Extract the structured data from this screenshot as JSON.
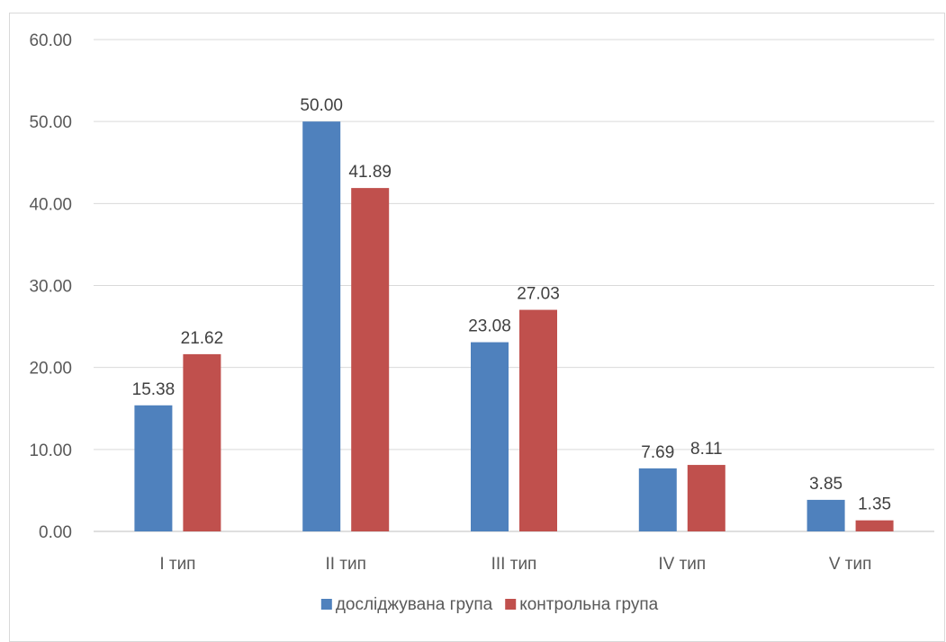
{
  "chart_data": {
    "type": "bar",
    "categories": [
      "I тип",
      "II тип",
      "III тип",
      "IV тип",
      "V тип"
    ],
    "series": [
      {
        "name": "досліджувана група",
        "color": "#4f81bd",
        "values": [
          15.38,
          50.0,
          23.08,
          7.69,
          3.85
        ]
      },
      {
        "name": "контрольна група",
        "color": "#c0504d",
        "values": [
          21.62,
          41.89,
          27.03,
          8.11,
          1.35
        ]
      }
    ],
    "ylim": [
      0,
      60
    ],
    "yticks": [
      "0.00",
      "10.00",
      "20.00",
      "30.00",
      "40.00",
      "50.00",
      "60.00"
    ],
    "title": "",
    "xlabel": "",
    "ylabel": "",
    "grid": true,
    "legend_position": "bottom",
    "data_labels": true
  }
}
